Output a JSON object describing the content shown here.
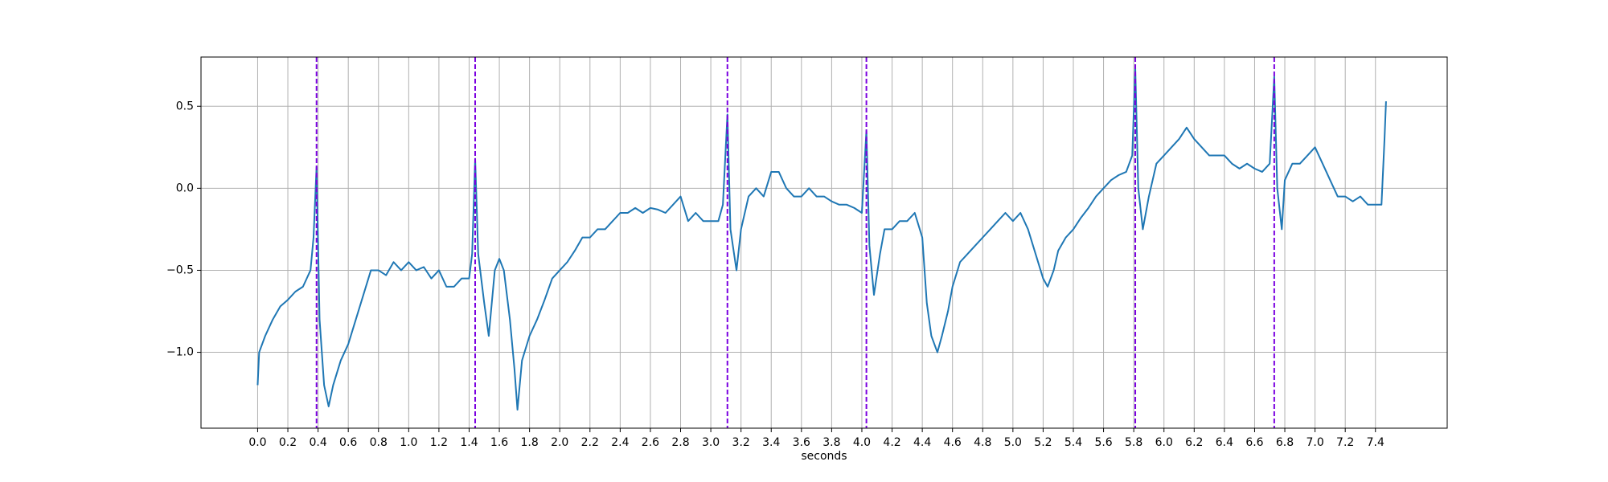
{
  "chart_data": {
    "type": "line",
    "xlabel": "seconds",
    "grid": true,
    "xlim": [
      -0.375,
      7.875
    ],
    "ylim": [
      -1.4625,
      0.8
    ],
    "xticks": [
      {
        "value": 0,
        "label": "0.0"
      },
      0.2,
      0.4,
      0.6,
      0.8,
      {
        "value": 1,
        "label": "1.0"
      },
      1.2,
      1.4,
      1.6,
      1.8,
      {
        "value": 2,
        "label": "2.0"
      },
      2.2,
      2.4,
      2.6,
      2.8,
      {
        "value": 3,
        "label": "3.0"
      },
      3.2,
      3.4,
      3.6,
      3.8,
      {
        "value": 4,
        "label": "4.0"
      },
      4.2,
      4.4,
      4.6,
      4.8,
      {
        "value": 5,
        "label": "5.0"
      },
      5.2,
      5.4,
      5.6,
      5.8,
      {
        "value": 6,
        "label": "6.0"
      },
      6.2,
      6.4,
      6.6,
      6.8,
      {
        "value": 7,
        "label": "7.0"
      },
      7.2,
      7.4
    ],
    "yticks": [
      {
        "value": -1,
        "label": "−1.0"
      },
      {
        "value": -0.5,
        "label": "−0.5"
      },
      {
        "value": 0,
        "label": "0.0"
      },
      0.5
    ],
    "vlines": [
      0.39,
      1.44,
      3.11,
      4.03,
      5.81,
      6.73
    ],
    "vline_color": "#7b00e0",
    "series": [
      {
        "color": "#1f77b4",
        "x": [
          0,
          0.01,
          0.05,
          0.1,
          0.15,
          0.2,
          0.25,
          0.3,
          0.35,
          0.37,
          0.39,
          0.41,
          0.44,
          0.47,
          0.5,
          0.55,
          0.6,
          0.65,
          0.7,
          0.75,
          0.8,
          0.85,
          0.9,
          0.95,
          1,
          1.05,
          1.1,
          1.15,
          1.2,
          1.25,
          1.3,
          1.35,
          1.4,
          1.42,
          1.44,
          1.46,
          1.5,
          1.53,
          1.57,
          1.6,
          1.63,
          1.67,
          1.7,
          1.72,
          1.75,
          1.8,
          1.85,
          1.9,
          1.95,
          2,
          2.05,
          2.1,
          2.15,
          2.2,
          2.25,
          2.3,
          2.35,
          2.4,
          2.45,
          2.5,
          2.55,
          2.6,
          2.65,
          2.7,
          2.75,
          2.8,
          2.85,
          2.9,
          2.95,
          3,
          3.05,
          3.08,
          3.11,
          3.13,
          3.17,
          3.2,
          3.25,
          3.3,
          3.35,
          3.4,
          3.45,
          3.5,
          3.55,
          3.6,
          3.65,
          3.7,
          3.75,
          3.8,
          3.85,
          3.9,
          3.95,
          4,
          4.03,
          4.05,
          4.08,
          4.12,
          4.15,
          4.2,
          4.25,
          4.3,
          4.35,
          4.4,
          4.43,
          4.46,
          4.5,
          4.53,
          4.57,
          4.6,
          4.65,
          4.7,
          4.75,
          4.8,
          4.85,
          4.9,
          4.95,
          5,
          5.05,
          5.1,
          5.15,
          5.2,
          5.23,
          5.27,
          5.3,
          5.35,
          5.4,
          5.45,
          5.5,
          5.55,
          5.6,
          5.65,
          5.7,
          5.75,
          5.79,
          5.81,
          5.83,
          5.86,
          5.9,
          5.95,
          6,
          6.05,
          6.1,
          6.15,
          6.2,
          6.25,
          6.3,
          6.35,
          6.4,
          6.45,
          6.5,
          6.55,
          6.6,
          6.65,
          6.7,
          6.73,
          6.75,
          6.78,
          6.8,
          6.85,
          6.9,
          6.95,
          7,
          7.05,
          7.1,
          7.15,
          7.2,
          7.25,
          7.3,
          7.35,
          7.4,
          7.44,
          7.46,
          7.47
        ],
        "values": [
          -1.2,
          -1.0,
          -0.9,
          -0.8,
          -0.72,
          -0.68,
          -0.63,
          -0.6,
          -0.5,
          -0.3,
          0.13,
          -0.8,
          -1.2,
          -1.33,
          -1.2,
          -1.05,
          -0.95,
          -0.8,
          -0.65,
          -0.5,
          -0.5,
          -0.53,
          -0.45,
          -0.5,
          -0.45,
          -0.5,
          -0.48,
          -0.55,
          -0.5,
          -0.6,
          -0.6,
          -0.55,
          -0.55,
          -0.4,
          0.18,
          -0.4,
          -0.7,
          -0.9,
          -0.5,
          -0.43,
          -0.5,
          -0.8,
          -1.1,
          -1.35,
          -1.05,
          -0.9,
          -0.8,
          -0.68,
          -0.55,
          -0.5,
          -0.45,
          -0.38,
          -0.3,
          -0.3,
          -0.25,
          -0.25,
          -0.2,
          -0.15,
          -0.15,
          -0.12,
          -0.15,
          -0.12,
          -0.13,
          -0.15,
          -0.1,
          -0.05,
          -0.2,
          -0.15,
          -0.2,
          -0.2,
          -0.2,
          -0.1,
          0.45,
          -0.25,
          -0.5,
          -0.25,
          -0.05,
          0.0,
          -0.05,
          0.1,
          0.1,
          0.0,
          -0.05,
          -0.05,
          0.0,
          -0.05,
          -0.05,
          -0.08,
          -0.1,
          -0.1,
          -0.12,
          -0.15,
          0.35,
          -0.35,
          -0.65,
          -0.4,
          -0.25,
          -0.25,
          -0.2,
          -0.2,
          -0.15,
          -0.3,
          -0.7,
          -0.9,
          -1.0,
          -0.9,
          -0.75,
          -0.6,
          -0.45,
          -0.4,
          -0.35,
          -0.3,
          -0.25,
          -0.2,
          -0.15,
          -0.2,
          -0.15,
          -0.25,
          -0.4,
          -0.55,
          -0.6,
          -0.5,
          -0.38,
          -0.3,
          -0.25,
          -0.18,
          -0.12,
          -0.05,
          0.0,
          0.05,
          0.08,
          0.1,
          0.2,
          0.73,
          0.0,
          -0.25,
          -0.05,
          0.15,
          0.2,
          0.25,
          0.3,
          0.37,
          0.3,
          0.25,
          0.2,
          0.2,
          0.2,
          0.15,
          0.12,
          0.15,
          0.12,
          0.1,
          0.15,
          0.68,
          0.0,
          -0.25,
          0.05,
          0.15,
          0.15,
          0.2,
          0.25,
          0.15,
          0.05,
          -0.05,
          -0.05,
          -0.08,
          -0.05,
          -0.1,
          -0.1,
          -0.1,
          0.3,
          0.53
        ]
      }
    ]
  }
}
